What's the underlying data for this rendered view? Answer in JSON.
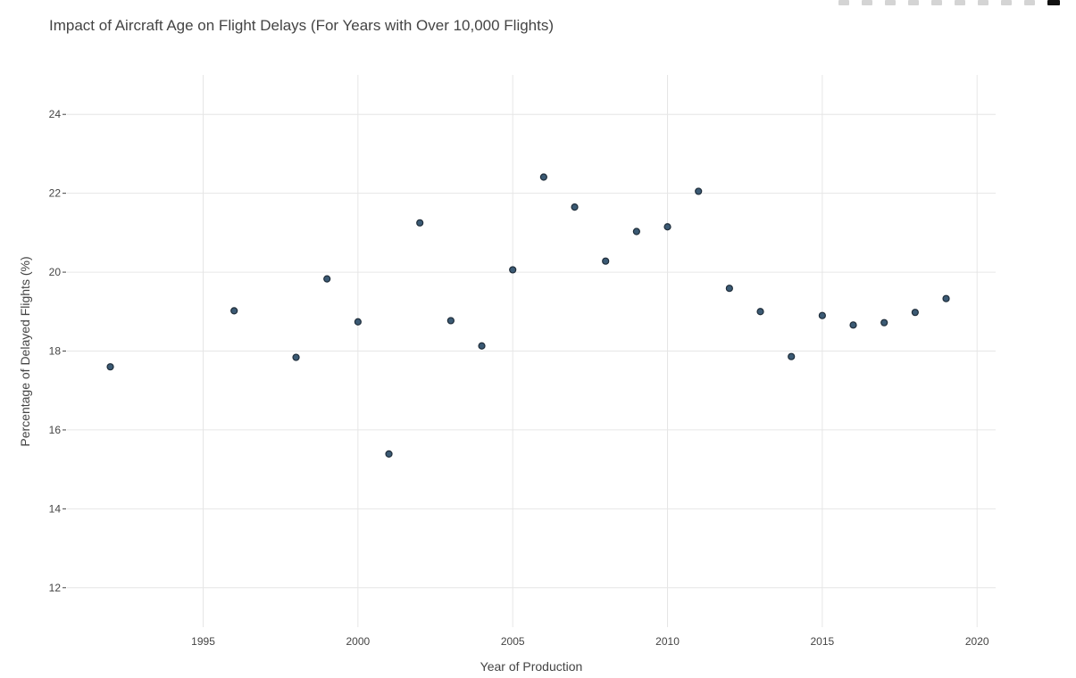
{
  "modebar": {
    "icons": [
      "camera-icon",
      "zoom-icon",
      "pan-icon",
      "lasso-select-icon",
      "box-select-icon",
      "zoom-in-icon",
      "zoom-out-icon",
      "autoscale-icon",
      "reset-axes-icon",
      "plotly-logo-icon"
    ]
  },
  "colors": {
    "marker": "#3b5a74",
    "marker_edge": "#1f2d3a",
    "grid": "#e6e6e6",
    "text": "#444444"
  },
  "chart_data": {
    "type": "scatter",
    "title": "Impact of Aircraft Age on Flight Delays (For Years with Over 10,000 Flights)",
    "xlabel": "Year of Production",
    "ylabel": "Percentage of Delayed Flights (%)",
    "xlim": [
      1990.6,
      2020.6
    ],
    "ylim": [
      11,
      25
    ],
    "x_ticks": [
      1995,
      2000,
      2005,
      2010,
      2015,
      2020
    ],
    "y_ticks": [
      12,
      14,
      16,
      18,
      20,
      22,
      24
    ],
    "grid": true,
    "x": [
      1992,
      1996,
      1998,
      1999,
      2000,
      2001,
      2002,
      2003,
      2004,
      2005,
      2006,
      2007,
      2008,
      2009,
      2010,
      2011,
      2012,
      2013,
      2014,
      2015,
      2016,
      2017,
      2018,
      2019
    ],
    "y": [
      17.6,
      19.02,
      17.84,
      19.83,
      18.74,
      15.39,
      21.25,
      18.77,
      18.13,
      20.06,
      22.41,
      21.65,
      20.28,
      21.03,
      21.15,
      22.05,
      19.59,
      19.0,
      17.86,
      18.9,
      18.66,
      18.72,
      18.98,
      19.33
    ]
  }
}
